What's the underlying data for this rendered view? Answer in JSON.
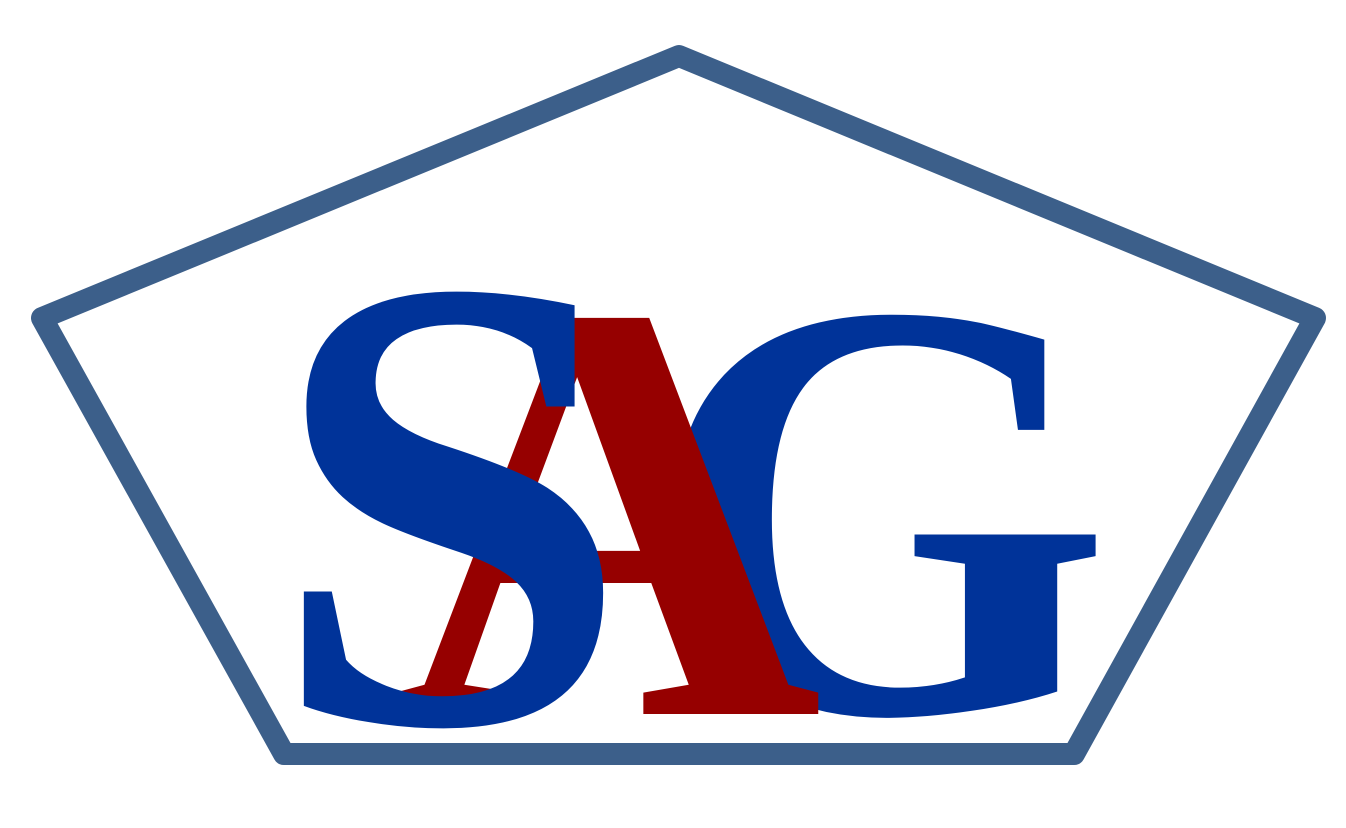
{
  "logo": {
    "letters": {
      "s": "S",
      "a": "A",
      "g": "G"
    },
    "colors": {
      "frame": "#3c5f8a",
      "blue_letters": "#003399",
      "red_letter": "#960000",
      "background": "#ffffff"
    },
    "shape": "pentagon"
  }
}
